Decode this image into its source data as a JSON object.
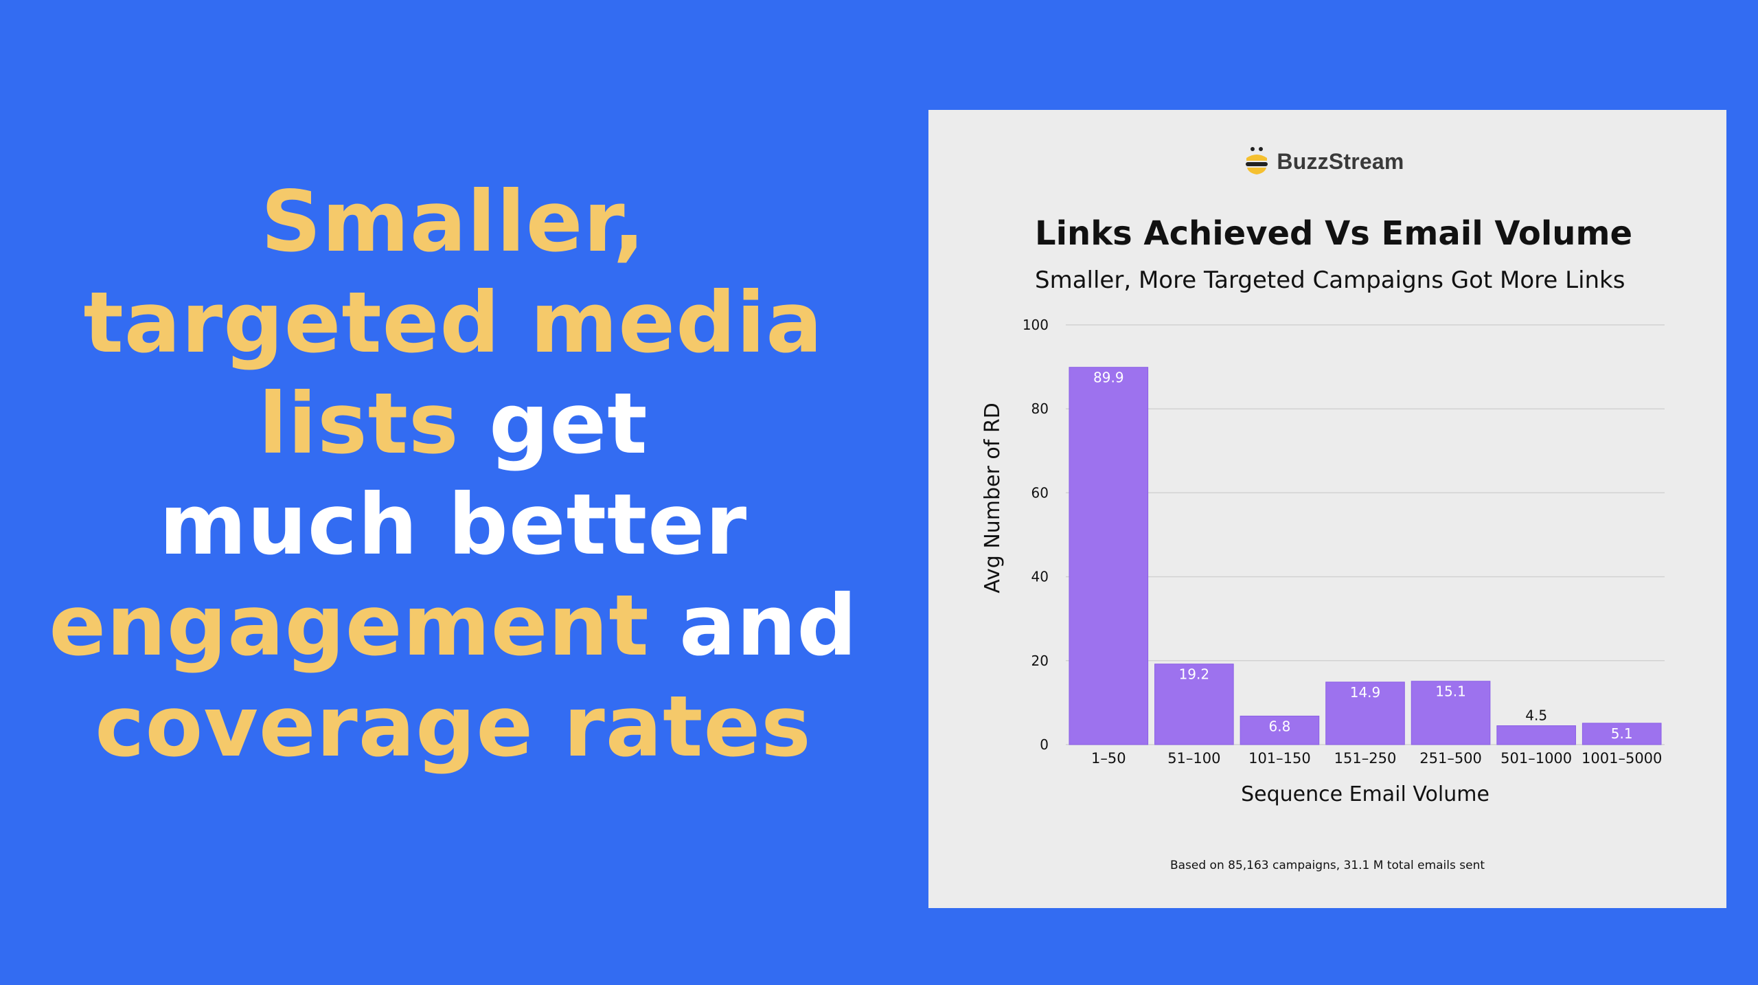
{
  "headline": {
    "lines": [
      [
        {
          "text": "Smaller,",
          "color": "yellow"
        }
      ],
      [
        {
          "text": "targeted media",
          "color": "yellow"
        }
      ],
      [
        {
          "text": "lists",
          "color": "yellow"
        },
        {
          "text": " get",
          "color": "white"
        }
      ],
      [
        {
          "text": "much better",
          "color": "white"
        }
      ],
      [
        {
          "text": "engagement",
          "color": "yellow"
        },
        {
          "text": " and",
          "color": "white"
        }
      ],
      [
        {
          "text": "coverage rates",
          "color": "yellow"
        }
      ]
    ]
  },
  "brand": {
    "name": "BuzzStream",
    "icon": "bee-hive-icon"
  },
  "colors": {
    "background": "#336cf2",
    "headline_yellow": "#f5c96a",
    "headline_white": "#ffffff",
    "card": "#ececec",
    "bar": "#9d72ee",
    "bar_outline": "#8a5fe6"
  },
  "chart_data": {
    "type": "bar",
    "title": "Links Achieved Vs Email Volume",
    "subtitle": "Smaller, More Targeted Campaigns Got More Links",
    "xlabel": "Sequence Email Volume",
    "ylabel": "Avg Number of RD",
    "categories": [
      "1–50",
      "51–100",
      "101–150",
      "151–250",
      "251–500",
      "501–1000",
      "1001–5000"
    ],
    "values": [
      89.9,
      19.2,
      6.8,
      14.9,
      15.1,
      4.5,
      5.1
    ],
    "value_labels": [
      "89.9",
      "19.2",
      "6.8",
      "14.9",
      "15.1",
      "4.5",
      "5.1"
    ],
    "ylim": [
      0,
      100
    ],
    "yticks": [
      0,
      20,
      40,
      60,
      80,
      100
    ],
    "grid": true,
    "legend": "none"
  },
  "footnote": "Based on 85,163 campaigns, 31.1 M total emails sent"
}
